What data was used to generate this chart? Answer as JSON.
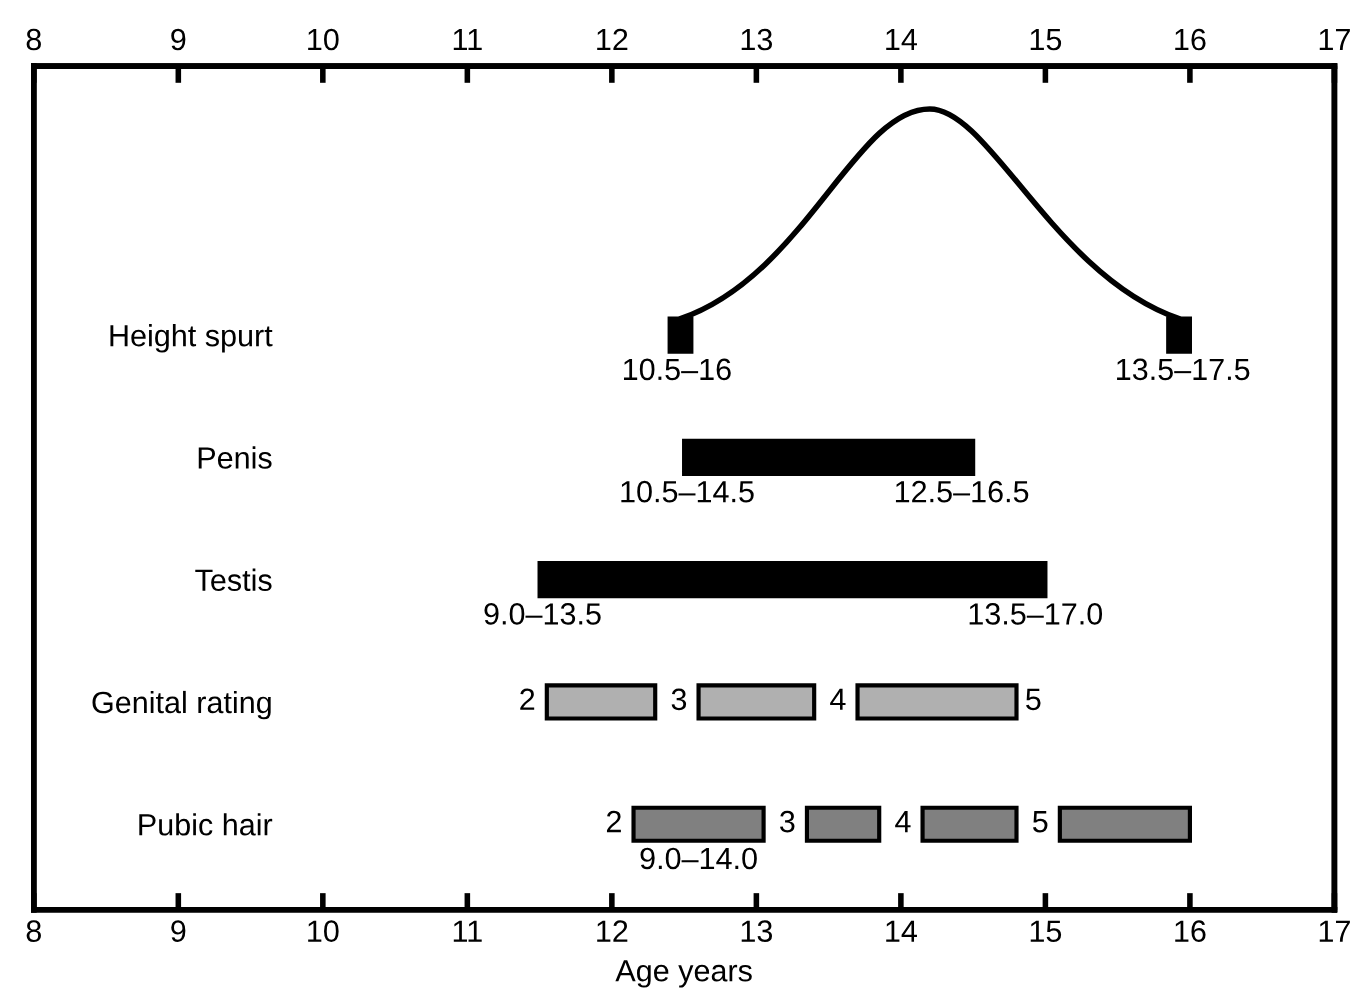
{
  "chart_data": {
    "type": "bar",
    "orientation": "horizontal",
    "xlabel": "Age years",
    "categories": [
      "Height spurt",
      "Penis",
      "Testis",
      "Genital rating",
      "Pubic hair"
    ],
    "xlim": [
      8,
      17
    ],
    "xticks": [
      8,
      9,
      10,
      11,
      12,
      13,
      14,
      15,
      16,
      17
    ],
    "x2lim": [
      8,
      17
    ],
    "x2ticks": [
      8,
      9,
      10,
      11,
      12,
      13,
      14,
      15,
      16,
      17
    ],
    "series": [
      {
        "values": [
          0.15,
          2.0,
          3.5,
          0.75,
          0.9
        ],
        "base": [
          12.4,
          12.5,
          11.5,
          11.55,
          12.15
        ],
        "colors": [
          "#000000",
          "#000000",
          "#000000",
          "#b0b0b0",
          "#808080"
        ]
      },
      {
        "values": [
          0.15,
          null,
          null,
          0.8,
          0.5
        ],
        "base": [
          15.85,
          null,
          null,
          12.6,
          13.35
        ],
        "colors": [
          "#000000",
          null,
          null,
          "#b0b0b0",
          "#808080"
        ]
      },
      {
        "values": [
          null,
          null,
          null,
          1.1,
          0.65
        ],
        "base": [
          null,
          null,
          null,
          13.7,
          14.15
        ],
        "colors": [
          null,
          null,
          null,
          "#b0b0b0",
          "#808080"
        ]
      },
      {
        "values": [
          null,
          null,
          null,
          null,
          0.9
        ],
        "base": [
          null,
          null,
          null,
          null,
          15.1
        ],
        "colors": [
          null,
          null,
          null,
          null,
          "#808080"
        ]
      }
    ],
    "annotations": [
      {
        "text": "10.5–16",
        "x": 12.45,
        "y": "Height spurt"
      },
      {
        "text": "13.5–17.5",
        "x": 15.95,
        "y": "Height spurt"
      },
      {
        "text": "10.5–14.5",
        "x": 12.52,
        "y": "Penis"
      },
      {
        "text": "12.5–16.5",
        "x": 14.42,
        "y": "Penis"
      },
      {
        "text": "9.0–13.5",
        "x": 11.52,
        "y": "Testis"
      },
      {
        "text": "13.5–17.0",
        "x": 14.93,
        "y": "Testis"
      },
      {
        "text": "2",
        "x": 11.55,
        "y": "Genital rating"
      },
      {
        "text": "3",
        "x": 12.6,
        "y": "Genital rating"
      },
      {
        "text": "4",
        "x": 13.7,
        "y": "Genital rating"
      },
      {
        "text": "5",
        "x": 14.8,
        "y": "Genital rating"
      },
      {
        "text": "2",
        "x": 12.15,
        "y": "Pubic hair"
      },
      {
        "text": "3",
        "x": 13.35,
        "y": "Pubic hair"
      },
      {
        "text": "4",
        "x": 14.15,
        "y": "Pubic hair"
      },
      {
        "text": "5",
        "x": 15.1,
        "y": "Pubic hair"
      },
      "9.0–14.0"
    ]
  }
}
